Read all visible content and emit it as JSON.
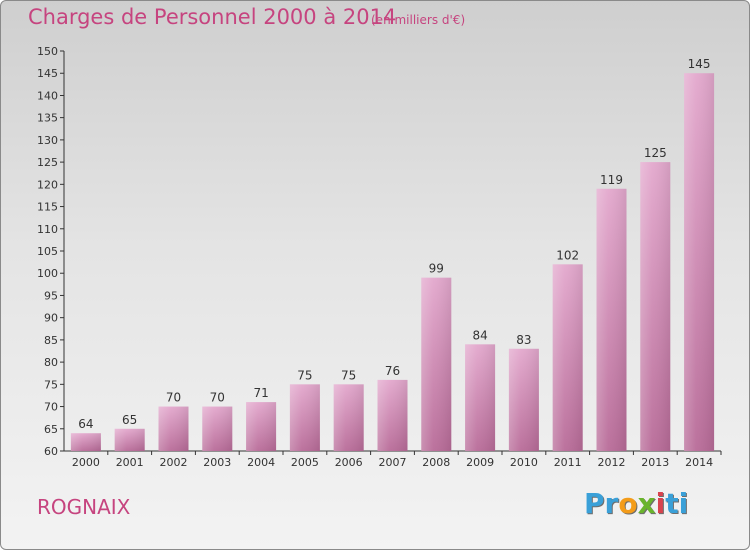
{
  "title": "Charges de Personnel 2000 à 2014",
  "subtitle": "(en milliers d'€)",
  "commune": "ROGNAIX",
  "logo": {
    "p1": "Pr",
    "p2": "o",
    "p3": "x",
    "p4": "i",
    "p5": "ti"
  },
  "colors": {
    "accent": "#c6447f",
    "bar": "#d98ab8",
    "axis": "#333333"
  },
  "chart_data": {
    "type": "bar",
    "title": "Charges de Personnel 2000 à 2014",
    "subtitle": "(en milliers d'€)",
    "categories": [
      "2000",
      "2001",
      "2002",
      "2003",
      "2004",
      "2005",
      "2006",
      "2007",
      "2008",
      "2009",
      "2010",
      "2011",
      "2012",
      "2013",
      "2014"
    ],
    "values": [
      64,
      65,
      70,
      70,
      71,
      75,
      75,
      76,
      99,
      84,
      83,
      102,
      119,
      125,
      145
    ],
    "ylim": [
      60,
      150
    ],
    "yticks": [
      60,
      65,
      70,
      75,
      80,
      85,
      90,
      95,
      100,
      105,
      110,
      115,
      120,
      125,
      130,
      135,
      140,
      145,
      150
    ],
    "grid": false,
    "data_labels": true
  }
}
